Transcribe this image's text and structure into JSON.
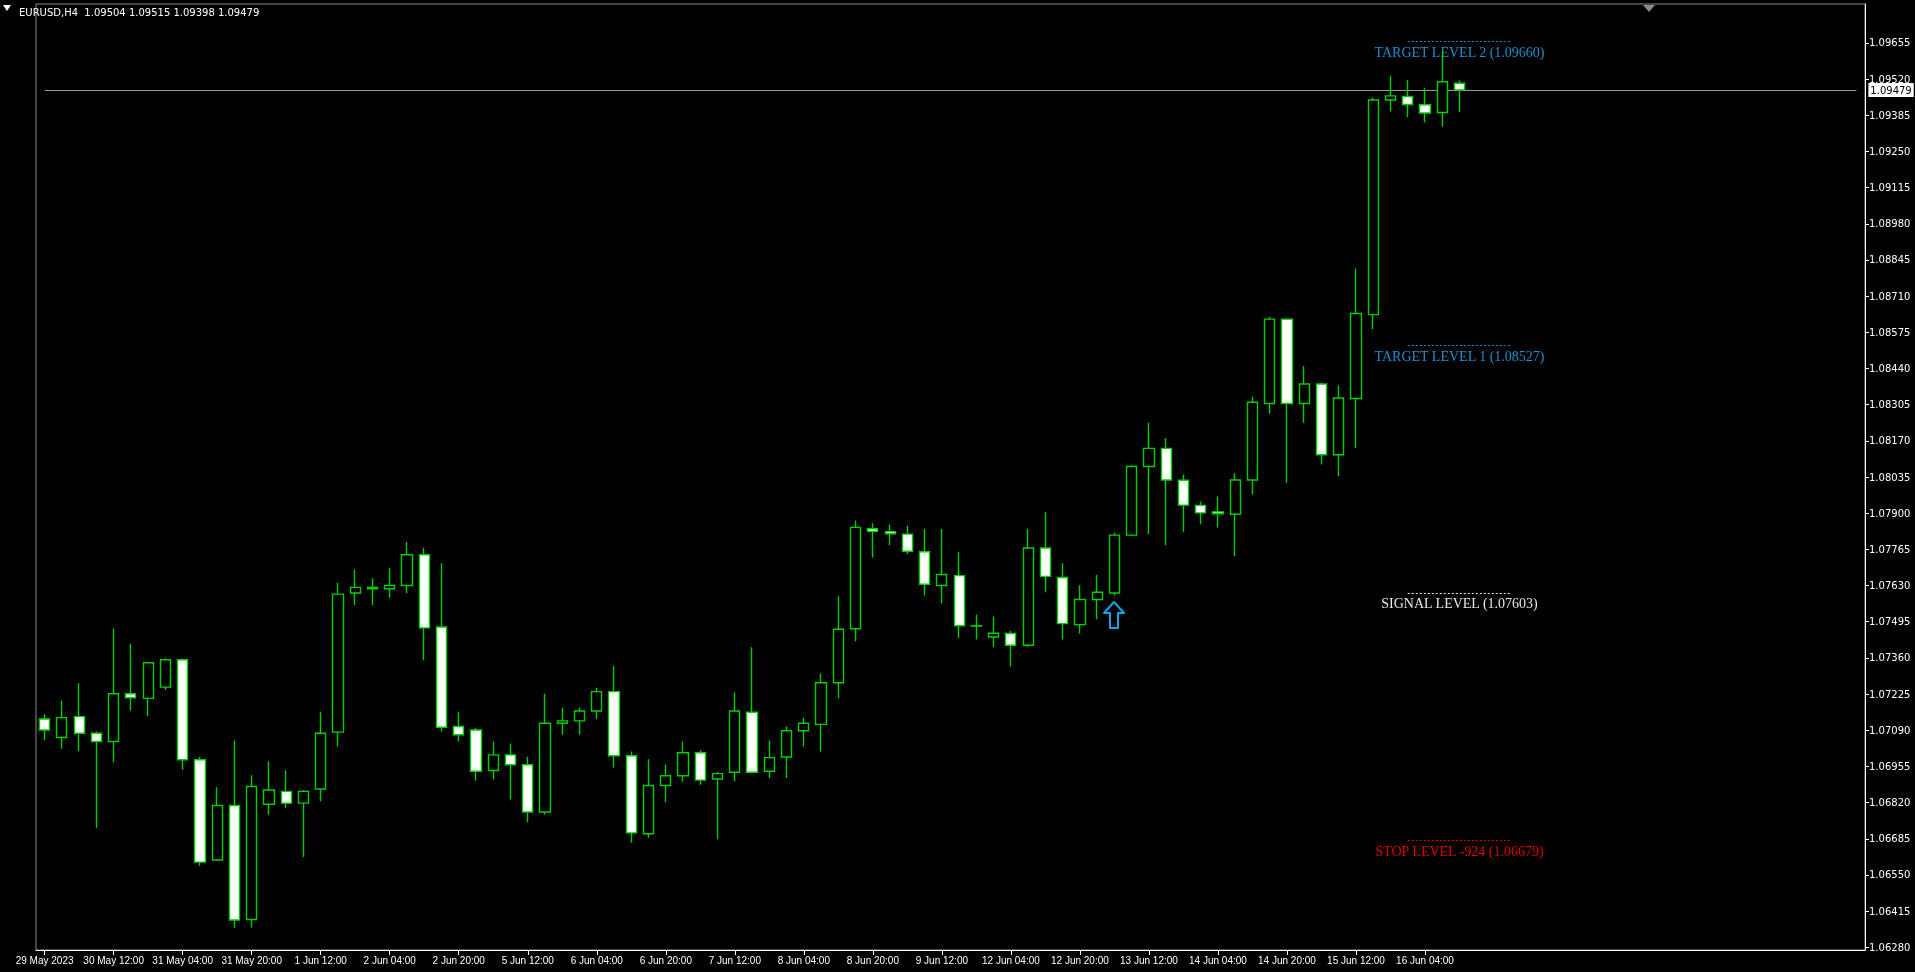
{
  "chart_data": {
    "type": "candlestick",
    "title": "EURUSD,H4  1.09504 1.09515 1.09398 1.09479",
    "color": "#00d000",
    "categories": [
      "29 May 2023",
      null,
      null,
      null,
      "30 May 12:00",
      null,
      null,
      null,
      "31 May 04:00",
      null,
      null,
      null,
      "31 May 20:00",
      null,
      null,
      null,
      "1 Jun 12:00",
      null,
      null,
      null,
      "2 Jun 04:00",
      null,
      null,
      null,
      "2 Jun 20:00",
      null,
      null,
      null,
      "5 Jun 12:00",
      null,
      null,
      null,
      "6 Jun 04:00",
      null,
      null,
      null,
      "6 Jun 20:00",
      null,
      null,
      null,
      "7 Jun 12:00",
      null,
      null,
      null,
      "8 Jun 04:00",
      null,
      null,
      null,
      "8 Jun 20:00",
      null,
      null,
      null,
      "9 Jun 12:00",
      null,
      null,
      null,
      "12 Jun 04:00",
      null,
      null,
      null,
      "12 Jun 20:00",
      null,
      null,
      null,
      "13 Jun 12:00",
      null,
      null,
      null,
      "14 Jun 04:00",
      null,
      null,
      null,
      "14 Jun 20:00",
      null,
      null,
      null,
      "15 Jun 12:00",
      null,
      null,
      null,
      "16 Jun 04:00",
      null,
      null,
      null,
      null,
      null,
      null,
      null,
      null,
      null,
      null,
      null,
      null,
      null,
      null,
      null,
      null,
      null,
      null,
      null,
      null,
      null,
      null,
      null,
      null,
      null
    ],
    "ohlc": [
      [
        1.07132,
        1.0715,
        1.07054,
        1.07091
      ],
      [
        1.07063,
        1.072,
        1.07021,
        1.07137
      ],
      [
        1.07141,
        1.07265,
        1.07013,
        1.07079
      ],
      [
        1.07079,
        1.07085,
        1.06726,
        1.07048
      ],
      [
        1.07048,
        1.07469,
        1.06971,
        1.07226
      ],
      [
        1.07226,
        1.07413,
        1.07164,
        1.07211
      ],
      [
        1.07209,
        1.07345,
        1.07143,
        1.07342
      ],
      [
        1.07251,
        1.07358,
        1.0724,
        1.07353
      ],
      [
        1.07353,
        1.07358,
        1.06943,
        1.0698
      ],
      [
        1.0698,
        1.06991,
        1.06584,
        1.06598
      ],
      [
        1.06606,
        1.06877,
        1.06602,
        1.06809
      ],
      [
        1.06809,
        1.07052,
        1.06352,
        1.06382
      ],
      [
        1.06384,
        1.06922,
        1.06354,
        1.0688
      ],
      [
        1.06814,
        1.06974,
        1.06775,
        1.06867
      ],
      [
        1.06862,
        1.06941,
        1.068,
        1.06818
      ],
      [
        1.06818,
        1.06867,
        1.06617,
        1.06862
      ],
      [
        1.06871,
        1.07159,
        1.06825,
        1.07079
      ],
      [
        1.07083,
        1.07639,
        1.07029,
        1.07598
      ],
      [
        1.07602,
        1.0769,
        1.07556,
        1.07623
      ],
      [
        1.07618,
        1.07657,
        1.07556,
        1.07623
      ],
      [
        1.07618,
        1.07695,
        1.07584,
        1.0763
      ],
      [
        1.0763,
        1.07792,
        1.07602,
        1.07745
      ],
      [
        1.07745,
        1.07771,
        1.07351,
        1.07472
      ],
      [
        1.07475,
        1.07713,
        1.07085,
        1.07101
      ],
      [
        1.07104,
        1.07159,
        1.07048,
        1.07073
      ],
      [
        1.07091,
        1.07098,
        1.06902,
        1.06937
      ],
      [
        1.0694,
        1.07048,
        1.06906,
        1.06998
      ],
      [
        1.06998,
        1.07041,
        1.06832,
        1.06961
      ],
      [
        1.06961,
        1.06991,
        1.06747,
        1.06785
      ],
      [
        1.06785,
        1.07226,
        1.06775,
        1.07116
      ],
      [
        1.07116,
        1.07174,
        1.07073,
        1.07125
      ],
      [
        1.07125,
        1.07174,
        1.07073,
        1.07162
      ],
      [
        1.07162,
        1.07249,
        1.07132,
        1.07234
      ],
      [
        1.07234,
        1.0733,
        1.06951,
        1.06995
      ],
      [
        1.06995,
        1.07011,
        1.0667,
        1.06707
      ],
      [
        1.06704,
        1.06982,
        1.06689,
        1.06884
      ],
      [
        1.06884,
        1.06961,
        1.06821,
        1.0692
      ],
      [
        1.0692,
        1.07048,
        1.06899,
        1.07006
      ],
      [
        1.07006,
        1.07015,
        1.06887,
        1.06904
      ],
      [
        1.06908,
        1.06934,
        1.06683,
        1.06928
      ],
      [
        1.06933,
        1.07231,
        1.06899,
        1.07162
      ],
      [
        1.07157,
        1.074,
        1.0693,
        1.06933
      ],
      [
        1.06937,
        1.07052,
        1.06912,
        1.06988
      ],
      [
        1.0699,
        1.07104,
        1.06912,
        1.07088
      ],
      [
        1.07088,
        1.07137,
        1.07029,
        1.07116
      ],
      [
        1.07112,
        1.07302,
        1.07011,
        1.07267
      ],
      [
        1.07267,
        1.0759,
        1.07209,
        1.07467
      ],
      [
        1.07469,
        1.07873,
        1.07422,
        1.07847
      ],
      [
        1.07842,
        1.07862,
        1.07735,
        1.07832
      ],
      [
        1.07831,
        1.07857,
        1.07781,
        1.07823
      ],
      [
        1.07822,
        1.07853,
        1.07748,
        1.07758
      ],
      [
        1.07756,
        1.07841,
        1.07593,
        1.07635
      ],
      [
        1.0763,
        1.07841,
        1.07564,
        1.07671
      ],
      [
        1.07667,
        1.07754,
        1.07434,
        1.0748
      ],
      [
        1.07479,
        1.07521,
        1.07429,
        1.0748
      ],
      [
        1.07438,
        1.07514,
        1.07401,
        1.07452
      ],
      [
        1.07451,
        1.0746,
        1.07328,
        1.07407
      ],
      [
        1.07407,
        1.07841,
        1.07401,
        1.0777
      ],
      [
        1.0777,
        1.07903,
        1.07605,
        1.07664
      ],
      [
        1.0766,
        1.07713,
        1.07429,
        1.07488
      ],
      [
        1.07484,
        1.07631,
        1.07451,
        1.07578
      ],
      [
        1.07578,
        1.07669,
        1.07504,
        1.07605
      ],
      [
        1.07602,
        1.07828,
        1.07593,
        1.07818
      ],
      [
        1.07818,
        1.0808,
        1.07814,
        1.08074
      ],
      [
        1.08074,
        1.08237,
        1.07822,
        1.08142
      ],
      [
        1.08142,
        1.0818,
        1.07781,
        1.08024
      ],
      [
        1.08023,
        1.08044,
        1.07831,
        1.0793
      ],
      [
        1.07929,
        1.07944,
        1.07859,
        1.07901
      ],
      [
        1.07905,
        1.07962,
        1.07847,
        1.07898
      ],
      [
        1.07896,
        1.08049,
        1.0774,
        1.08024
      ],
      [
        1.08024,
        1.08334,
        1.0797,
        1.08314
      ],
      [
        1.08309,
        1.08632,
        1.08271,
        1.08624
      ],
      [
        1.08624,
        1.08627,
        1.08014,
        1.08309
      ],
      [
        1.08309,
        1.08448,
        1.08237,
        1.08382
      ],
      [
        1.08382,
        1.08387,
        1.08082,
        1.08118
      ],
      [
        1.08118,
        1.08376,
        1.08039,
        1.0833
      ],
      [
        1.08328,
        1.08813,
        1.08144,
        1.08645
      ],
      [
        1.08641,
        1.09451,
        1.08587,
        1.09442
      ],
      [
        1.09442,
        1.09532,
        1.09399,
        1.09457
      ],
      [
        1.09455,
        1.09516,
        1.09377,
        1.09425
      ],
      [
        1.09424,
        1.09486,
        1.09358,
        1.09393
      ],
      [
        1.09395,
        1.09624,
        1.09342,
        1.0951
      ],
      [
        1.09504,
        1.09515,
        1.09398,
        1.09479
      ],
      null,
      null,
      null,
      null,
      null,
      null,
      null,
      null,
      null,
      null,
      null,
      null,
      null,
      null,
      null,
      null,
      null,
      null,
      null,
      null,
      null,
      null,
      null
    ],
    "ylim": [
      1.0627,
      1.098
    ],
    "yticks": [
      {
        "value": 1.0628,
        "label": "1.06280"
      },
      1.06415,
      {
        "value": 1.0655,
        "label": "1.06550"
      },
      1.06685,
      {
        "value": 1.0682,
        "label": "1.06820"
      },
      1.06955,
      {
        "value": 1.0709,
        "label": "1.07090"
      },
      1.07225,
      {
        "value": 1.0736,
        "label": "1.07360"
      },
      1.07495,
      {
        "value": 1.0763,
        "label": "1.07630"
      },
      1.07765,
      {
        "value": 1.079,
        "label": "1.07900"
      },
      1.08035,
      {
        "value": 1.0817,
        "label": "1.08170"
      },
      1.08305,
      {
        "value": 1.0844,
        "label": "1.08440"
      },
      1.08575,
      {
        "value": 1.0871,
        "label": "1.08710"
      },
      1.08845,
      {
        "value": 1.0898,
        "label": "1.08980"
      },
      1.09115,
      {
        "value": 1.0925,
        "label": "1.09250"
      },
      1.09385,
      {
        "value": 1.0952,
        "label": "1.09520"
      },
      1.09655
    ],
    "ref_lines": [
      {
        "axis": "y",
        "value": 1.09479,
        "label": "1.09479",
        "color": "#9a9a9a",
        "line_style": "solid"
      },
      {
        "axis": "y",
        "value": 1.0966,
        "label": "TARGET LEVEL 2 (1.09660)",
        "color": "#1e90d0",
        "line_style": "dotted"
      },
      {
        "axis": "y",
        "value": 1.08527,
        "label": "TARGET LEVEL 1 (1.08527)",
        "color": "#1e90d0",
        "line_style": "dotted"
      },
      {
        "axis": "y",
        "value": 1.07603,
        "label": "SIGNAL LEVEL (1.07603)",
        "color": "#e8e8e8",
        "line_style": "dotted"
      },
      {
        "axis": "y",
        "value": 1.06679,
        "label": "STOP LEVEL -924 (1.06679)",
        "color": "#e00000",
        "line_style": "dotted"
      }
    ],
    "grid": false
  }
}
